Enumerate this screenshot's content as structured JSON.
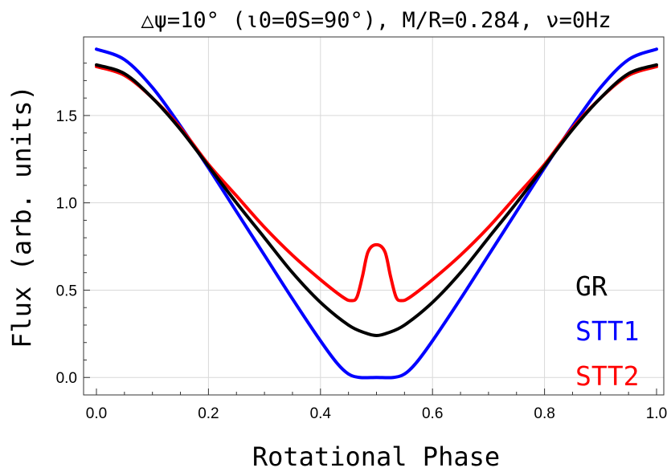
{
  "chart_data": {
    "type": "line",
    "title": "△ψ=10° (ι0=ΘS=90°), M/R=0.284, ν=0Hz",
    "xlabel": "Rotational Phase",
    "ylabel": "Flux (arb. units)",
    "xlim": [
      0.0,
      1.0
    ],
    "ylim": [
      -0.1,
      1.95
    ],
    "xticks": [
      "0.0",
      "0.2",
      "0.4",
      "0.6",
      "0.8",
      "1.0"
    ],
    "yticks": [
      "0.0",
      "0.5",
      "1.0",
      "1.5"
    ],
    "grid": true,
    "legend_position": "bottom-right",
    "series": [
      {
        "name": "GR",
        "color": "#000000",
        "x": [
          0.0,
          0.05,
          0.1,
          0.15,
          0.2,
          0.25,
          0.3,
          0.35,
          0.4,
          0.45,
          0.48,
          0.5,
          0.52,
          0.55,
          0.6,
          0.65,
          0.7,
          0.75,
          0.8,
          0.85,
          0.9,
          0.95,
          1.0
        ],
        "y": [
          1.79,
          1.74,
          1.6,
          1.42,
          1.21,
          1.0,
          0.8,
          0.6,
          0.43,
          0.3,
          0.255,
          0.24,
          0.255,
          0.3,
          0.43,
          0.6,
          0.8,
          1.0,
          1.21,
          1.42,
          1.6,
          1.74,
          1.79
        ]
      },
      {
        "name": "STT1",
        "color": "#0000ff",
        "x": [
          0.0,
          0.05,
          0.1,
          0.15,
          0.2,
          0.25,
          0.3,
          0.35,
          0.4,
          0.43,
          0.45,
          0.47,
          0.5,
          0.53,
          0.55,
          0.57,
          0.6,
          0.65,
          0.7,
          0.75,
          0.8,
          0.85,
          0.9,
          0.95,
          1.0
        ],
        "y": [
          1.88,
          1.82,
          1.66,
          1.44,
          1.2,
          0.95,
          0.7,
          0.45,
          0.21,
          0.08,
          0.02,
          0.0,
          0.0,
          0.0,
          0.02,
          0.08,
          0.21,
          0.45,
          0.7,
          0.95,
          1.2,
          1.44,
          1.66,
          1.82,
          1.88
        ]
      },
      {
        "name": "STT2",
        "color": "#ff0000",
        "x": [
          0.0,
          0.05,
          0.1,
          0.15,
          0.2,
          0.25,
          0.3,
          0.35,
          0.4,
          0.44,
          0.455,
          0.465,
          0.475,
          0.485,
          0.5,
          0.515,
          0.525,
          0.535,
          0.545,
          0.56,
          0.6,
          0.65,
          0.7,
          0.75,
          0.8,
          0.85,
          0.9,
          0.95,
          1.0
        ],
        "y": [
          1.78,
          1.73,
          1.6,
          1.43,
          1.22,
          1.04,
          0.86,
          0.7,
          0.56,
          0.46,
          0.44,
          0.46,
          0.58,
          0.72,
          0.76,
          0.72,
          0.58,
          0.46,
          0.44,
          0.46,
          0.56,
          0.7,
          0.86,
          1.04,
          1.22,
          1.43,
          1.6,
          1.73,
          1.78
        ]
      }
    ]
  }
}
